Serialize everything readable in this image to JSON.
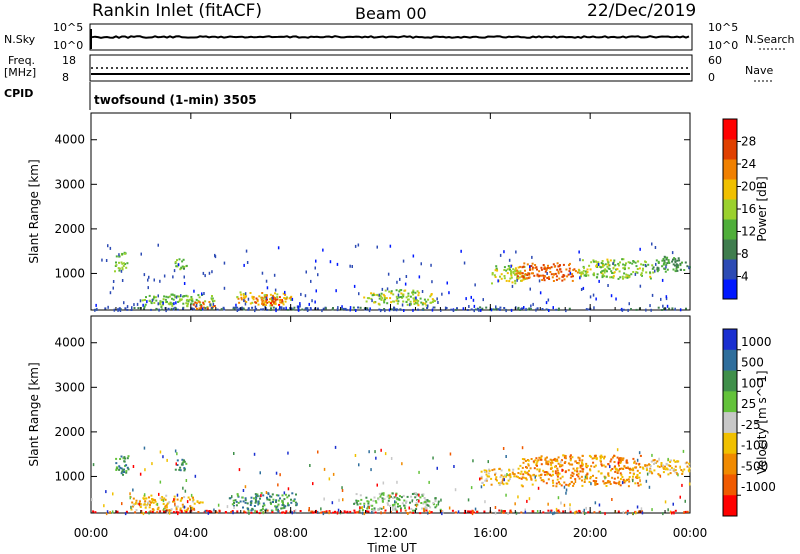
{
  "header": {
    "station": "Rankin Inlet (fitACF)",
    "beam": "Beam 00",
    "date": "22/Dec/2019"
  },
  "nsky_panel": {
    "label": "N.Sky",
    "left_ticks": [
      "10^5",
      "10^0"
    ],
    "right_ticks": [
      "10^5",
      "10^0"
    ],
    "right_label": "N.Search"
  },
  "freq_panel": {
    "label": "Freq.",
    "unit": "[MHz]",
    "left_ticks": [
      "18",
      "8"
    ],
    "right_ticks": [
      "60",
      "0"
    ],
    "right_label": "Nave"
  },
  "cpid": {
    "label": "CPID",
    "value": "twofsound (1-min) 3505"
  },
  "x_axis": {
    "label": "Time UT",
    "ticks": [
      "00:00",
      "04:00",
      "08:00",
      "12:00",
      "16:00",
      "20:00",
      "00:00"
    ]
  },
  "chart_data": [
    {
      "type": "heatmap",
      "quantity": "power",
      "ylabel": "Slant Range [km]",
      "yticks": [
        1000,
        2000,
        3000,
        4000
      ],
      "ylim": [
        180,
        4600
      ],
      "xlim_hours": [
        0,
        24
      ],
      "colorbar": {
        "label": "Power [dB]",
        "tick_labels": [
          "4",
          "8",
          "12",
          "16",
          "20",
          "24",
          "28"
        ],
        "range": [
          0,
          32
        ],
        "colors": [
          "#0018ff",
          "#2d4bb4",
          "#3f7d4e",
          "#4fae3a",
          "#9bd12e",
          "#f0c000",
          "#f08000",
          "#e04000",
          "#ff0000"
        ]
      },
      "echo_regions": [
        {
          "t": [
            0.9,
            1.5
          ],
          "range_km": [
            1050,
            1500
          ],
          "level": 14
        },
        {
          "t": [
            3.3,
            3.8
          ],
          "range_km": [
            1100,
            1350
          ],
          "level": 13
        },
        {
          "t": [
            2.0,
            5.0
          ],
          "range_km": [
            250,
            550
          ],
          "level": 14
        },
        {
          "t": [
            4.0,
            5.0
          ],
          "range_km": [
            220,
            400
          ],
          "level": 26
        },
        {
          "t": [
            5.8,
            8.0
          ],
          "range_km": [
            300,
            600
          ],
          "level": 20
        },
        {
          "t": [
            6.5,
            8.0
          ],
          "range_km": [
            300,
            500
          ],
          "level": 27
        },
        {
          "t": [
            10.8,
            13.8
          ],
          "range_km": [
            300,
            650
          ],
          "level": 16
        },
        {
          "t": [
            16.0,
            17.5
          ],
          "range_km": [
            800,
            1200
          ],
          "level": 17
        },
        {
          "t": [
            17.0,
            19.5
          ],
          "range_km": [
            850,
            1250
          ],
          "level": 26
        },
        {
          "t": [
            19.5,
            22.5
          ],
          "range_km": [
            900,
            1350
          ],
          "level": 15
        },
        {
          "t": [
            22.5,
            24.0
          ],
          "range_km": [
            1050,
            1400
          ],
          "level": 10
        },
        {
          "t": [
            0.0,
            24.0
          ],
          "range_km": [
            200,
            260
          ],
          "level": 6
        }
      ]
    },
    {
      "type": "heatmap",
      "quantity": "velocity",
      "ylabel": "Slant Range [km]",
      "yticks": [
        1000,
        2000,
        3000,
        4000
      ],
      "ylim": [
        180,
        4600
      ],
      "xlim_hours": [
        0,
        24
      ],
      "colorbar": {
        "label": "Velocity [m s^-1]",
        "tick_labels": [
          "1000",
          "500",
          "100",
          "25",
          "-25",
          "-100",
          "-500",
          "-1000"
        ],
        "colors": [
          "#1a2fd0",
          "#2f6e9c",
          "#3f8f4a",
          "#63c23a",
          "#c8c8c8",
          "#f0c000",
          "#f08a00",
          "#f05a00",
          "#ff0000"
        ]
      },
      "echo_regions": [
        {
          "t": [
            0.9,
            1.5
          ],
          "range_km": [
            1050,
            1500
          ],
          "level": 2
        },
        {
          "t": [
            3.3,
            3.8
          ],
          "range_km": [
            1100,
            1400
          ],
          "level": 2
        },
        {
          "t": [
            1.5,
            4.5
          ],
          "range_km": [
            250,
            600
          ],
          "level": 5
        },
        {
          "t": [
            5.5,
            8.2
          ],
          "range_km": [
            250,
            650
          ],
          "level": 2
        },
        {
          "t": [
            10.5,
            14.0
          ],
          "range_km": [
            250,
            650
          ],
          "level": 3
        },
        {
          "t": [
            15.5,
            17.0
          ],
          "range_km": [
            800,
            1200
          ],
          "level": 5
        },
        {
          "t": [
            17.0,
            22.0
          ],
          "range_km": [
            800,
            1500
          ],
          "level": 6
        },
        {
          "t": [
            22.0,
            24.0
          ],
          "range_km": [
            1050,
            1400
          ],
          "level": 5
        },
        {
          "t": [
            0.0,
            24.0
          ],
          "range_km": [
            200,
            260
          ],
          "level": 8
        }
      ]
    }
  ]
}
